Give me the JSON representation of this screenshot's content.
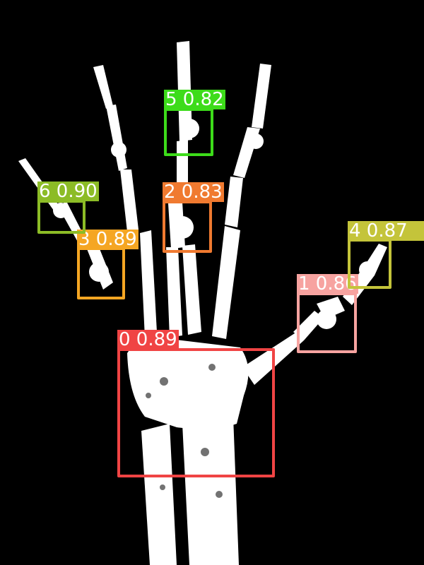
{
  "image": {
    "subject": "hand-xray-icon",
    "background": "#000000",
    "bone_color": "#ffffff"
  },
  "detections": [
    {
      "class_id": "0",
      "score": "0.89",
      "text": "0 0.89",
      "color": "#f04444"
    },
    {
      "class_id": "1",
      "score": "0.86",
      "text": "1 0.86",
      "color": "#f7a3a0"
    },
    {
      "class_id": "2",
      "score": "0.83",
      "text": "2 0.83",
      "color": "#f07a30"
    },
    {
      "class_id": "3",
      "score": "0.89",
      "text": "3 0.89",
      "color": "#f5a623"
    },
    {
      "class_id": "4",
      "score": "0.87",
      "text": "4 0.87",
      "color": "#c4c43a"
    },
    {
      "class_id": "5",
      "score": "0.82",
      "text": "5 0.82",
      "color": "#3ddc1a"
    },
    {
      "class_id": "6",
      "score": "0.90",
      "text": "6 0.90",
      "color": "#8cbc26"
    }
  ]
}
